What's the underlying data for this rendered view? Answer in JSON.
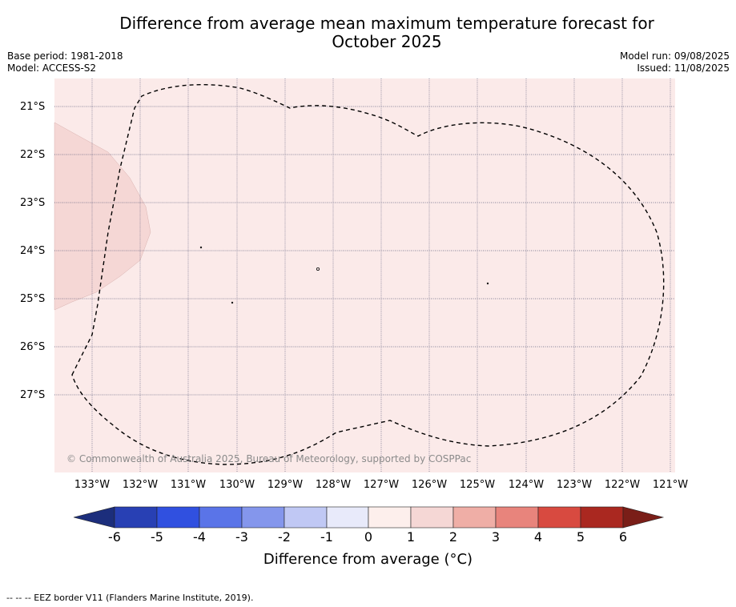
{
  "title": {
    "line1": "Difference from average mean maximum temperature forecast for",
    "line2": "October 2025"
  },
  "meta": {
    "base_period": "Base period: 1981-2018",
    "model": "Model: ACCESS-S2",
    "model_run": "Model run: 09/08/2025",
    "issued": "Issued: 11/08/2025"
  },
  "map": {
    "lat_labels": [
      "21°S",
      "22°S",
      "23°S",
      "24°S",
      "25°S",
      "26°S",
      "27°S"
    ],
    "lon_labels": [
      "133°W",
      "132°W",
      "131°W",
      "130°W",
      "129°W",
      "128°W",
      "127°W",
      "126°W",
      "125°W",
      "124°W",
      "123°W",
      "122°W",
      "121°W"
    ],
    "background_color": "#fbeae9",
    "warm_region_color": "#f5d7d5",
    "copyright": "© Commonwealth of Australia 2025, Bureau of Meteorology, supported by COSPPac"
  },
  "colorbar": {
    "ticks": [
      "-6",
      "-5",
      "-4",
      "-3",
      "-2",
      "-1",
      "0",
      "1",
      "2",
      "3",
      "4",
      "5",
      "6"
    ],
    "colors": [
      "#2840b4",
      "#3050e0",
      "#5a74e8",
      "#8496ec",
      "#c0c8f4",
      "#e8eafa",
      "#fdefec",
      "#f5d7d5",
      "#efaea6",
      "#e8847c",
      "#d84a40",
      "#aa2820"
    ],
    "under_color": "#1c2e7c",
    "over_color": "#7a1e18",
    "label": "Difference from average (°C)"
  },
  "footnote": "-- -- -- EEZ border V11 (Flanders Marine Institute, 2019)."
}
